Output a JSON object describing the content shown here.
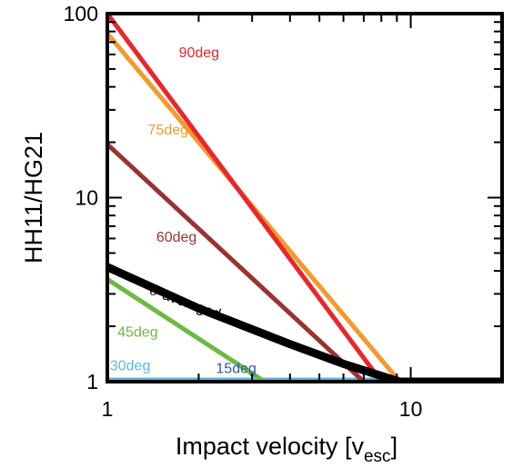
{
  "chart_data": {
    "type": "line",
    "xlabel": "Impact velocity [v",
    "xlabel_sub": "esc",
    "xlabel_suffix": "]",
    "ylabel": "HH11/HG21",
    "xlim": [
      1,
      20
    ],
    "ylim": [
      1,
      100
    ],
    "xscale": "log",
    "yscale": "log",
    "x_ticks": [
      1,
      10
    ],
    "y_ticks": [
      1,
      10,
      100
    ],
    "x_tick_labels": [
      "1",
      "10"
    ],
    "y_tick_labels": [
      "1",
      "10",
      "100"
    ],
    "series": [
      {
        "name": "90deg",
        "color": "#e8262b",
        "width": 5,
        "x": [
          1,
          8
        ],
        "y": [
          100,
          1
        ]
      },
      {
        "name": "75deg",
        "color": "#f29a2e",
        "width": 5,
        "x": [
          1,
          9.2,
          20
        ],
        "y": [
          78,
          1,
          1
        ]
      },
      {
        "name": "60deg",
        "color": "#993333",
        "width": 5,
        "x": [
          1,
          7,
          20
        ],
        "y": [
          19.5,
          1,
          1
        ]
      },
      {
        "name": "45deg",
        "color": "#6cba44",
        "width": 5,
        "x": [
          1,
          3.3,
          20
        ],
        "y": [
          3.6,
          1,
          1
        ]
      },
      {
        "name": "30deg",
        "color": "#5bb8e0",
        "width": 9,
        "x": [
          1,
          20
        ],
        "y": [
          1,
          1
        ]
      },
      {
        "name": "15deg",
        "color": "#2b5ca8",
        "width": 2,
        "x": [
          1,
          20
        ],
        "y": [
          1,
          1
        ]
      },
      {
        "name": "θ-averaged",
        "color": "#000000",
        "width": 9,
        "x": [
          1,
          2,
          4,
          6,
          9.2,
          20
        ],
        "y": [
          4.2,
          2.5,
          1.6,
          1.25,
          1,
          1
        ]
      }
    ]
  }
}
